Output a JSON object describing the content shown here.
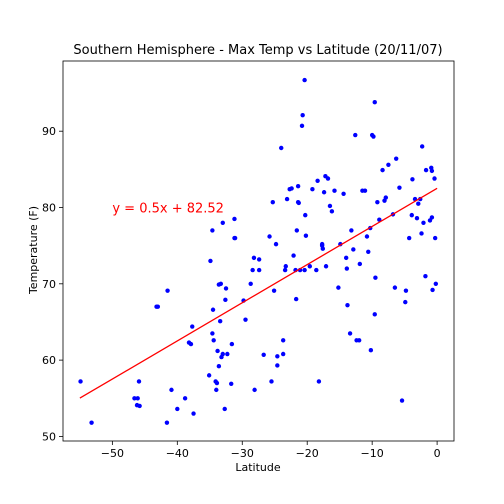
{
  "chart_data": {
    "type": "scatter",
    "title": "Southern Hemisphere - Max Temp vs Latitude (20/11/07)",
    "xlabel": "Latitude",
    "ylabel": "Temperature (F)",
    "xlim": [
      -57.6,
      2.6
    ],
    "ylim": [
      49.4,
      99.2
    ],
    "xticks": [
      -50,
      -40,
      -30,
      -20,
      -10,
      0
    ],
    "yticks": [
      50,
      60,
      70,
      80,
      90
    ],
    "grid": false,
    "point_color": "#0000ff",
    "line_color": "#ff0000",
    "annotation": {
      "text": "y = 0.5x + 82.52",
      "x": -50,
      "y": 80,
      "color": "#ff0000"
    },
    "regression": {
      "slope": 0.5,
      "intercept": 82.52,
      "x_range": [
        -55,
        0
      ]
    },
    "points": [
      [
        -54.9,
        57.2
      ],
      [
        -53.2,
        51.8
      ],
      [
        -46.6,
        55.0
      ],
      [
        -46.1,
        55.0
      ],
      [
        -46.2,
        54.1
      ],
      [
        -45.8,
        54.0
      ],
      [
        -45.9,
        57.2
      ],
      [
        -43.2,
        67.0
      ],
      [
        -43.0,
        67.0
      ],
      [
        -41.6,
        51.8
      ],
      [
        -41.5,
        69.1
      ],
      [
        -40.9,
        56.1
      ],
      [
        -40.0,
        53.6
      ],
      [
        -38.8,
        55.0
      ],
      [
        -38.2,
        62.3
      ],
      [
        -37.9,
        62.1
      ],
      [
        -37.7,
        64.4
      ],
      [
        -37.5,
        53.0
      ],
      [
        -35.1,
        58.0
      ],
      [
        -34.9,
        73.0
      ],
      [
        -34.6,
        77.0
      ],
      [
        -34.5,
        66.6
      ],
      [
        -34.6,
        63.5
      ],
      [
        -34.4,
        62.6
      ],
      [
        -34.1,
        57.2
      ],
      [
        -33.9,
        57.0
      ],
      [
        -34.0,
        56.1
      ],
      [
        -33.8,
        61.2
      ],
      [
        -33.6,
        59.2
      ],
      [
        -33.2,
        60.4
      ],
      [
        -33.0,
        60.8
      ],
      [
        -33.6,
        69.9
      ],
      [
        -33.3,
        70.0
      ],
      [
        -33.4,
        65.1
      ],
      [
        -33.0,
        78.0
      ],
      [
        -32.7,
        53.6
      ],
      [
        -32.5,
        69.4
      ],
      [
        -32.6,
        67.9
      ],
      [
        -32.3,
        60.8
      ],
      [
        -31.6,
        62.1
      ],
      [
        -31.7,
        56.9
      ],
      [
        -31.2,
        78.5
      ],
      [
        -31.2,
        76.0
      ],
      [
        -31.1,
        76.0
      ],
      [
        -29.8,
        67.8
      ],
      [
        -29.5,
        65.3
      ],
      [
        -28.7,
        70.0
      ],
      [
        -28.2,
        73.4
      ],
      [
        -28.4,
        71.8
      ],
      [
        -28.1,
        56.1
      ],
      [
        -27.4,
        73.2
      ],
      [
        -27.4,
        71.8
      ],
      [
        -26.7,
        60.7
      ],
      [
        -25.8,
        76.2
      ],
      [
        -25.5,
        57.2
      ],
      [
        -25.3,
        80.7
      ],
      [
        -25.1,
        69.1
      ],
      [
        -24.8,
        75.2
      ],
      [
        -24.6,
        59.3
      ],
      [
        -24.6,
        60.5
      ],
      [
        -24.0,
        87.8
      ],
      [
        -23.7,
        60.8
      ],
      [
        -23.7,
        62.6
      ],
      [
        -23.4,
        71.8
      ],
      [
        -23.3,
        72.3
      ],
      [
        -23.1,
        81.1
      ],
      [
        -22.7,
        82.4
      ],
      [
        -22.4,
        82.5
      ],
      [
        -22.1,
        73.7
      ],
      [
        -21.8,
        71.8
      ],
      [
        -21.7,
        68.0
      ],
      [
        -21.6,
        77.0
      ],
      [
        -21.4,
        80.7
      ],
      [
        -21.4,
        82.8
      ],
      [
        -21.3,
        80.6
      ],
      [
        -21.1,
        71.8
      ],
      [
        -20.8,
        90.7
      ],
      [
        -20.7,
        92.1
      ],
      [
        -20.4,
        96.7
      ],
      [
        -20.4,
        71.8
      ],
      [
        -20.3,
        79.0
      ],
      [
        -20.2,
        76.3
      ],
      [
        -19.6,
        72.3
      ],
      [
        -19.2,
        82.4
      ],
      [
        -18.6,
        71.8
      ],
      [
        -18.4,
        83.5
      ],
      [
        -18.2,
        57.2
      ],
      [
        -17.7,
        75.2
      ],
      [
        -17.6,
        74.6
      ],
      [
        -17.7,
        75.0
      ],
      [
        -17.4,
        82.0
      ],
      [
        -17.2,
        84.1
      ],
      [
        -17.1,
        72.3
      ],
      [
        -16.8,
        83.8
      ],
      [
        -16.5,
        80.2
      ],
      [
        -16.2,
        79.5
      ],
      [
        -15.8,
        82.2
      ],
      [
        -15.2,
        69.5
      ],
      [
        -14.9,
        75.2
      ],
      [
        -14.4,
        81.8
      ],
      [
        -14.0,
        73.4
      ],
      [
        -13.9,
        72.0
      ],
      [
        -13.8,
        67.2
      ],
      [
        -13.4,
        63.5
      ],
      [
        -13.2,
        77.0
      ],
      [
        -12.9,
        74.5
      ],
      [
        -12.6,
        89.5
      ],
      [
        -12.4,
        62.6
      ],
      [
        -12.0,
        62.6
      ],
      [
        -11.9,
        72.6
      ],
      [
        -11.5,
        82.2
      ],
      [
        -11.1,
        82.2
      ],
      [
        -10.8,
        76.2
      ],
      [
        -10.6,
        74.2
      ],
      [
        -10.3,
        77.3
      ],
      [
        -10.2,
        61.3
      ],
      [
        -10.0,
        89.5
      ],
      [
        -9.8,
        89.3
      ],
      [
        -9.6,
        93.8
      ],
      [
        -9.6,
        66.0
      ],
      [
        -9.5,
        70.8
      ],
      [
        -9.2,
        80.7
      ],
      [
        -8.9,
        78.4
      ],
      [
        -8.4,
        84.9
      ],
      [
        -8.1,
        80.9
      ],
      [
        -7.9,
        81.3
      ],
      [
        -7.5,
        85.6
      ],
      [
        -6.8,
        79.1
      ],
      [
        -6.5,
        69.5
      ],
      [
        -6.3,
        86.4
      ],
      [
        -5.8,
        82.6
      ],
      [
        -5.4,
        54.7
      ],
      [
        -4.9,
        67.6
      ],
      [
        -4.8,
        69.1
      ],
      [
        -4.3,
        76.0
      ],
      [
        -3.9,
        79.0
      ],
      [
        -3.8,
        83.7
      ],
      [
        -3.4,
        81.1
      ],
      [
        -3.1,
        78.6
      ],
      [
        -2.9,
        80.5
      ],
      [
        -2.6,
        81.1
      ],
      [
        -2.4,
        76.6
      ],
      [
        -2.3,
        88.0
      ],
      [
        -2.1,
        78.0
      ],
      [
        -1.8,
        71.0
      ],
      [
        -1.7,
        84.9
      ],
      [
        -1.1,
        78.3
      ],
      [
        -0.9,
        85.2
      ],
      [
        -0.8,
        84.8
      ],
      [
        -0.8,
        78.7
      ],
      [
        -0.7,
        69.2
      ],
      [
        -0.4,
        83.8
      ],
      [
        -0.3,
        76.0
      ],
      [
        -0.2,
        70.0
      ]
    ]
  }
}
